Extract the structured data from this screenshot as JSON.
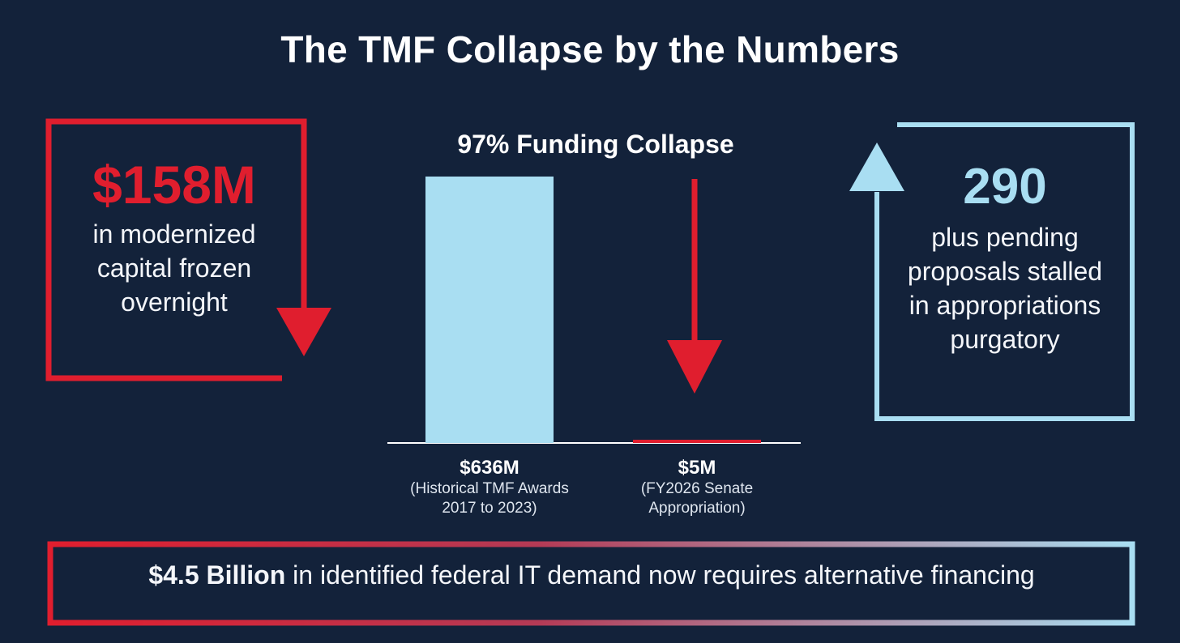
{
  "title": "The TMF Collapse by the Numbers",
  "left_panel": {
    "value": "$158M",
    "caption": "in modernized capital frozen overnight",
    "color": "#e01e2e"
  },
  "right_panel": {
    "value": "290",
    "caption": "plus pending proposals stalled in appropriations purgatory",
    "color": "#a9def2"
  },
  "footer": {
    "bold": "$4.5 Billion",
    "rest": " in identified federal IT demand now requires alternative financing"
  },
  "chart_data": {
    "type": "bar",
    "title": "97% Funding Collapse",
    "categories": [
      "(Historical TMF Awards\n2017 to 2023)",
      "(FY2026 Senate\nAppropriation)"
    ],
    "values": [
      636,
      5
    ],
    "value_labels": [
      "$636M",
      "$5M"
    ],
    "colors": [
      "#a9def2",
      "#e01e2e"
    ],
    "ylim": [
      0,
      636
    ],
    "grid": false
  },
  "icons": {
    "left_arrow": "down-arrow-icon",
    "right_arrow": "up-arrow-icon",
    "chart_arrow": "down-arrow-icon"
  }
}
